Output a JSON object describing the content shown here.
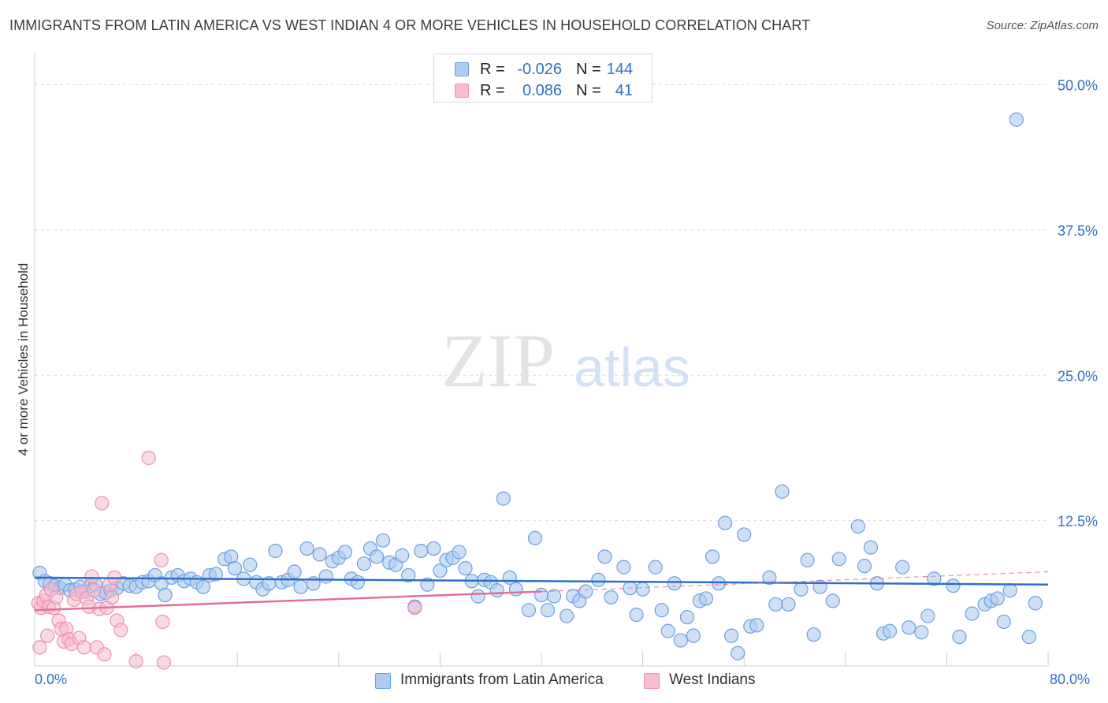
{
  "header": {
    "title": "IMMIGRANTS FROM LATIN AMERICA VS WEST INDIAN 4 OR MORE VEHICLES IN HOUSEHOLD CORRELATION CHART",
    "source": "Source: ZipAtlas.com"
  },
  "watermark": {
    "zip": "ZIP",
    "atlas": "atlas"
  },
  "colors": {
    "blue_fill": "#aecbf0",
    "blue_stroke": "#6d9fe0",
    "blue_line": "#2e6fc9",
    "pink_fill": "#f6bcd0",
    "pink_stroke": "#ee8fb0",
    "pink_line": "#e0709a",
    "grid": "#dcdcdc",
    "tick_text": "#2f6fc7"
  },
  "legend_top": {
    "rows": [
      {
        "r_label": "R =",
        "r_value": "-0.026",
        "n_label": "N =",
        "n_value": "144"
      },
      {
        "r_label": "R =",
        "r_value": "0.086",
        "n_label": "N =",
        "n_value": "41"
      }
    ]
  },
  "chart_data": {
    "type": "scatter",
    "title": "IMMIGRANTS FROM LATIN AMERICA VS WEST INDIAN 4 OR MORE VEHICLES IN HOUSEHOLD CORRELATION CHART",
    "xlabel": "",
    "ylabel": "4 or more Vehicles in Household",
    "xlim": [
      0,
      80
    ],
    "ylim": [
      0,
      52
    ],
    "x_tick_labels": [
      "0.0%",
      "80.0%"
    ],
    "y_ticks": [
      12.5,
      25.0,
      37.5,
      50.0
    ],
    "y_tick_labels": [
      "12.5%",
      "25.0%",
      "37.5%",
      "50.0%"
    ],
    "grid": true,
    "legend_position": "bottom",
    "series": [
      {
        "name": "Immigrants from Latin America",
        "color": "#6d9fe0",
        "trend": {
          "x": [
            0,
            80
          ],
          "y": [
            7.6,
            7.0
          ]
        },
        "points": [
          [
            0.4,
            8.0
          ],
          [
            0.8,
            7.3
          ],
          [
            1.2,
            7.1
          ],
          [
            1.6,
            6.9
          ],
          [
            2.0,
            6.7
          ],
          [
            2.4,
            7.0
          ],
          [
            2.8,
            6.5
          ],
          [
            3.2,
            6.6
          ],
          [
            3.6,
            6.8
          ],
          [
            4.0,
            6.4
          ],
          [
            4.4,
            6.9
          ],
          [
            4.8,
            7.0
          ],
          [
            5.2,
            6.2
          ],
          [
            5.6,
            6.3
          ],
          [
            6.0,
            6.5
          ],
          [
            6.5,
            6.7
          ],
          [
            7.0,
            7.1
          ],
          [
            7.5,
            6.9
          ],
          [
            8.0,
            6.8
          ],
          [
            8.5,
            7.2
          ],
          [
            9.0,
            7.3
          ],
          [
            9.5,
            7.8
          ],
          [
            10.0,
            7.1
          ],
          [
            10.3,
            6.1
          ],
          [
            10.8,
            7.6
          ],
          [
            11.3,
            7.8
          ],
          [
            11.8,
            7.3
          ],
          [
            12.3,
            7.5
          ],
          [
            12.8,
            7.2
          ],
          [
            13.3,
            6.8
          ],
          [
            13.8,
            7.8
          ],
          [
            14.3,
            7.9
          ],
          [
            15.0,
            9.2
          ],
          [
            15.5,
            9.4
          ],
          [
            15.8,
            8.4
          ],
          [
            16.5,
            7.5
          ],
          [
            17.0,
            8.7
          ],
          [
            17.5,
            7.2
          ],
          [
            18.0,
            6.6
          ],
          [
            18.5,
            7.1
          ],
          [
            19.0,
            9.9
          ],
          [
            19.5,
            7.2
          ],
          [
            20.0,
            7.4
          ],
          [
            20.5,
            8.1
          ],
          [
            21.0,
            6.8
          ],
          [
            21.5,
            10.1
          ],
          [
            22.0,
            7.1
          ],
          [
            22.5,
            9.6
          ],
          [
            23.0,
            7.7
          ],
          [
            23.5,
            9.0
          ],
          [
            24.0,
            9.3
          ],
          [
            24.5,
            9.8
          ],
          [
            25.0,
            7.5
          ],
          [
            25.5,
            7.2
          ],
          [
            26.0,
            8.8
          ],
          [
            26.5,
            10.1
          ],
          [
            27.0,
            9.4
          ],
          [
            27.5,
            10.8
          ],
          [
            28.0,
            8.9
          ],
          [
            28.5,
            8.7
          ],
          [
            29.0,
            9.5
          ],
          [
            29.5,
            7.8
          ],
          [
            30.0,
            5.1
          ],
          [
            30.5,
            9.9
          ],
          [
            31.0,
            7.0
          ],
          [
            31.5,
            10.1
          ],
          [
            32.0,
            8.2
          ],
          [
            32.5,
            9.1
          ],
          [
            33.0,
            9.3
          ],
          [
            33.5,
            9.8
          ],
          [
            34.0,
            8.4
          ],
          [
            34.5,
            7.3
          ],
          [
            35.0,
            6.0
          ],
          [
            35.5,
            7.4
          ],
          [
            36.0,
            7.2
          ],
          [
            36.5,
            6.5
          ],
          [
            37.0,
            14.4
          ],
          [
            37.5,
            7.6
          ],
          [
            38.0,
            6.6
          ],
          [
            39.0,
            4.8
          ],
          [
            39.5,
            11.0
          ],
          [
            40.0,
            6.1
          ],
          [
            40.5,
            4.8
          ],
          [
            41.0,
            6.0
          ],
          [
            42.0,
            4.3
          ],
          [
            42.5,
            6.0
          ],
          [
            43.0,
            5.6
          ],
          [
            43.5,
            6.4
          ],
          [
            44.5,
            7.4
          ],
          [
            45.0,
            9.4
          ],
          [
            45.5,
            5.9
          ],
          [
            46.5,
            8.5
          ],
          [
            47.0,
            6.7
          ],
          [
            47.5,
            4.4
          ],
          [
            48.0,
            6.6
          ],
          [
            49.0,
            8.5
          ],
          [
            49.5,
            4.8
          ],
          [
            50.0,
            3.0
          ],
          [
            50.5,
            7.1
          ],
          [
            51.0,
            2.2
          ],
          [
            51.5,
            4.2
          ],
          [
            52.0,
            2.6
          ],
          [
            52.5,
            5.6
          ],
          [
            53.0,
            5.8
          ],
          [
            53.5,
            9.4
          ],
          [
            54.0,
            7.1
          ],
          [
            54.5,
            12.3
          ],
          [
            55.0,
            2.6
          ],
          [
            55.5,
            1.1
          ],
          [
            56.0,
            11.3
          ],
          [
            56.5,
            3.4
          ],
          [
            57.0,
            3.5
          ],
          [
            58.0,
            7.6
          ],
          [
            58.5,
            5.3
          ],
          [
            59.0,
            15.0
          ],
          [
            59.5,
            5.3
          ],
          [
            60.5,
            6.6
          ],
          [
            61.0,
            9.1
          ],
          [
            61.5,
            2.7
          ],
          [
            62.0,
            6.8
          ],
          [
            63.0,
            5.6
          ],
          [
            63.5,
            9.2
          ],
          [
            65.0,
            12.0
          ],
          [
            65.5,
            8.6
          ],
          [
            66.0,
            10.2
          ],
          [
            66.5,
            7.1
          ],
          [
            67.0,
            2.8
          ],
          [
            67.5,
            3.0
          ],
          [
            68.5,
            8.5
          ],
          [
            69.0,
            3.3
          ],
          [
            70.0,
            2.9
          ],
          [
            70.5,
            4.3
          ],
          [
            71.0,
            7.5
          ],
          [
            72.5,
            6.9
          ],
          [
            73.0,
            2.5
          ],
          [
            74.0,
            4.5
          ],
          [
            75.0,
            5.3
          ],
          [
            75.5,
            5.6
          ],
          [
            76.0,
            5.8
          ],
          [
            76.5,
            3.8
          ],
          [
            77.0,
            6.5
          ],
          [
            78.5,
            2.5
          ],
          [
            77.5,
            47.0
          ],
          [
            79.0,
            5.4
          ]
        ]
      },
      {
        "name": "West Indians",
        "color": "#ee8fb0",
        "trend": {
          "x": [
            0,
            40
          ],
          "y": [
            4.8,
            6.4
          ]
        },
        "trend_extension": {
          "x": [
            40,
            80
          ],
          "y": [
            6.4,
            8.1
          ]
        },
        "points": [
          [
            0.3,
            5.4
          ],
          [
            0.5,
            5.0
          ],
          [
            0.7,
            5.6
          ],
          [
            0.9,
            6.1
          ],
          [
            1.1,
            5.1
          ],
          [
            1.3,
            6.6
          ],
          [
            1.5,
            5.0
          ],
          [
            1.7,
            5.9
          ],
          [
            1.9,
            3.9
          ],
          [
            2.1,
            3.2
          ],
          [
            2.3,
            2.1
          ],
          [
            2.5,
            3.2
          ],
          [
            2.7,
            2.3
          ],
          [
            2.9,
            1.9
          ],
          [
            3.1,
            5.7
          ],
          [
            3.3,
            6.2
          ],
          [
            3.5,
            2.4
          ],
          [
            3.7,
            6.4
          ],
          [
            3.9,
            1.6
          ],
          [
            4.1,
            5.8
          ],
          [
            4.3,
            5.1
          ],
          [
            4.5,
            7.7
          ],
          [
            4.7,
            6.5
          ],
          [
            4.9,
            1.6
          ],
          [
            5.1,
            4.9
          ],
          [
            5.3,
            14.0
          ],
          [
            5.5,
            1.0
          ],
          [
            5.7,
            5.0
          ],
          [
            5.9,
            7.0
          ],
          [
            6.1,
            5.9
          ],
          [
            6.3,
            7.6
          ],
          [
            6.5,
            3.9
          ],
          [
            6.8,
            3.1
          ],
          [
            8.0,
            0.4
          ],
          [
            9.0,
            17.9
          ],
          [
            10.0,
            9.1
          ],
          [
            10.1,
            3.8
          ],
          [
            10.2,
            0.3
          ],
          [
            0.4,
            1.6
          ],
          [
            1.0,
            2.6
          ],
          [
            30.0,
            5.0
          ]
        ]
      }
    ]
  },
  "legend_bottom": {
    "items": [
      {
        "label": "Immigrants from Latin America"
      },
      {
        "label": "West Indians"
      }
    ]
  }
}
